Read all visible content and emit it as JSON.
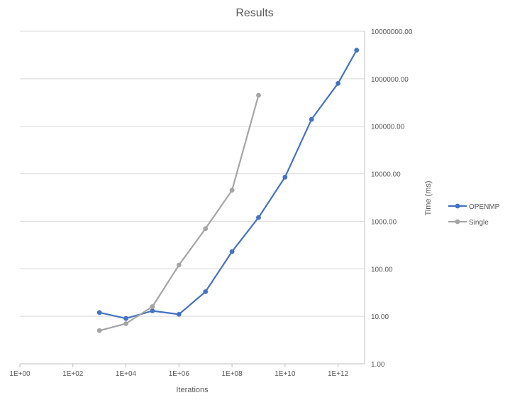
{
  "chart_data": {
    "type": "line",
    "title": "Results",
    "xlabel": "Iterations",
    "ylabel": "Time (ms)",
    "x_scale": "log10",
    "y_scale": "log10",
    "xlim": [
      1,
      10000000000000
    ],
    "ylim": [
      1,
      10000000
    ],
    "x_ticks": [
      1,
      100,
      10000,
      1000000,
      100000000,
      10000000000,
      1000000000000
    ],
    "x_tick_labels": [
      "1E+00",
      "1E+02",
      "1E+04",
      "1E+06",
      "1E+08",
      "1E+10",
      "1E+12"
    ],
    "y_ticks": [
      1,
      10,
      100,
      1000,
      10000,
      100000,
      1000000,
      10000000
    ],
    "y_tick_labels": [
      "1.00",
      "10.00",
      "100.00",
      "1000.00",
      "10000.00",
      "100000.00",
      "1000000.00",
      "10000000.00"
    ],
    "y_axis_position": "right",
    "grid": true,
    "legend_position": "right",
    "series": [
      {
        "name": "OPENMP",
        "color": "#4472c4",
        "x": [
          1000,
          10000,
          100000,
          1000000,
          10000000,
          100000000,
          1000000000,
          10000000000,
          100000000000,
          1000000000000,
          5000000000000
        ],
        "y": [
          12,
          9,
          13,
          11,
          33,
          230,
          1200,
          8500,
          140000,
          800000,
          4000000
        ]
      },
      {
        "name": "Single",
        "color": "#a5a5a5",
        "x": [
          1000,
          10000,
          100000,
          1000000,
          10000000,
          100000000,
          1000000000
        ],
        "y": [
          5,
          7,
          16,
          120,
          700,
          4500,
          450000
        ]
      }
    ]
  }
}
